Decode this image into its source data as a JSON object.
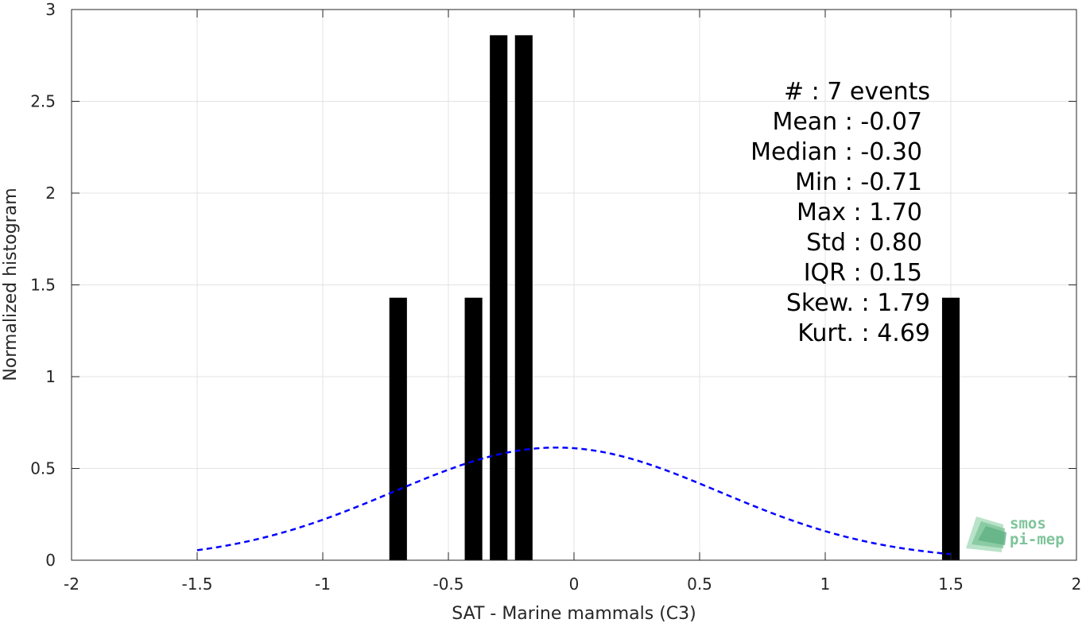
{
  "chart_data": {
    "type": "bar",
    "xlabel": "SAT - Marine mammals (C3)",
    "ylabel": "Normalized histogram",
    "xlim": [
      -2,
      2
    ],
    "ylim": [
      0,
      3
    ],
    "xticks": [
      "-2",
      "-1.5",
      "-1",
      "-0.5",
      "0",
      "0.5",
      "1",
      "1.5",
      "2"
    ],
    "yticks": [
      "0",
      "0.5",
      "1",
      "1.5",
      "2",
      "2.5",
      "3"
    ],
    "grid": true,
    "bars": [
      {
        "x": -0.7,
        "value": 1.43
      },
      {
        "x": -0.4,
        "value": 1.43
      },
      {
        "x": -0.3,
        "value": 2.86
      },
      {
        "x": -0.2,
        "value": 2.86
      },
      {
        "x": 1.5,
        "value": 1.43
      }
    ],
    "bar_color": "#000000",
    "fit_curve": {
      "style": "dashed",
      "color": "#0000ff",
      "mean": -0.07,
      "std": 0.65,
      "x_range": [
        -1.5,
        1.5
      ]
    },
    "stats": [
      "#  : 7 events",
      "Mean : -0.07",
      "Median : -0.30",
      "Min : -0.71",
      "Max : 1.70",
      "Std : 0.80",
      "IQR : 0.15",
      "Skew. : 1.79",
      "Kurt. : 4.69"
    ]
  },
  "logo": {
    "line1": "smos",
    "line2": "pi-mep",
    "color": "#7ec49a"
  }
}
